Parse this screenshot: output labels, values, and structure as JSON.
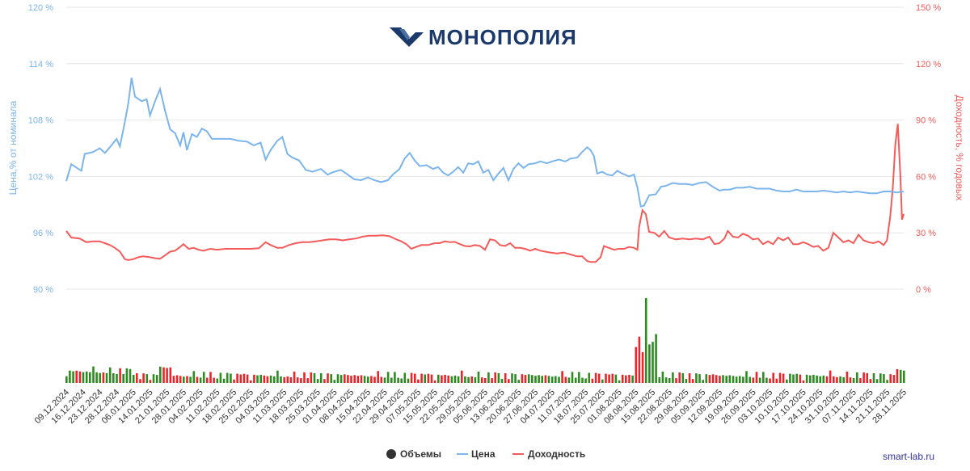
{
  "brand": {
    "logo_text": "МОНОПОЛИЯ"
  },
  "credits": "smart-lab.ru",
  "colors": {
    "price": "#7cb5ec",
    "yield": "#f45b5b",
    "vol_up": "#2e8b22",
    "vol_down": "#e8252a",
    "vol_marker": "#333333"
  },
  "chart_data": {
    "type": "line",
    "title": "",
    "axes": {
      "left": {
        "title": "Цена,% от номинала",
        "ticks": [
          "90 %",
          "96 %",
          "102 %",
          "108 %",
          "114 %",
          "120 %"
        ],
        "min": 90,
        "max": 120
      },
      "right": {
        "title": "Доходность, % годовых",
        "ticks": [
          "0 %",
          "30 %",
          "60 %",
          "90 %",
          "120 %",
          "150 %"
        ],
        "min": 0,
        "max": 150
      }
    },
    "x_tick_labels": [
      "09.12.2024",
      "16.12.2024",
      "23.12.2024",
      "28.12.2024",
      "06.01.2025",
      "14.01.2025",
      "21.01.2025",
      "28.01.2025",
      "04.02.2025",
      "11.02.2025",
      "18.02.2025",
      "25.02.2025",
      "04.03.2025",
      "11.03.2025",
      "18.03.2025",
      "25.03.2025",
      "01.04.2025",
      "08.04.2025",
      "15.04.2025",
      "22.04.2025",
      "29.04.2025",
      "07.05.2025",
      "15.05.2025",
      "22.05.2025",
      "29.05.2025",
      "05.06.2025",
      "13.06.2025",
      "20.06.2025",
      "27.06.2025",
      "04.07.2025",
      "11.07.2025",
      "18.07.2025",
      "25.07.2025",
      "01.08.2025",
      "08.08.2025",
      "15.08.2025",
      "22.08.2025",
      "29.08.2025",
      "05.09.2025",
      "12.09.2025",
      "19.09.2025",
      "26.09.2025",
      "03.10.2025",
      "10.10.2025",
      "17.10.2025",
      "24.10.2025",
      "31.10.2025",
      "07.11.2025",
      "14.11.2025",
      "21.11.2025",
      "28.11.2025"
    ],
    "legend": [
      "Объемы",
      "Цена",
      "Доходность"
    ],
    "price_anchors": [
      [
        0,
        101.5
      ],
      [
        0.3,
        103.3
      ],
      [
        0.9,
        102.6
      ],
      [
        1.1,
        104.4
      ],
      [
        1.6,
        104.6
      ],
      [
        2.0,
        105.0
      ],
      [
        2.3,
        104.5
      ],
      [
        2.6,
        105.1
      ],
      [
        3.0,
        106.0
      ],
      [
        3.2,
        105.2
      ],
      [
        3.5,
        107.8
      ],
      [
        3.7,
        109.8
      ],
      [
        3.9,
        112.5
      ],
      [
        4.1,
        110.5
      ],
      [
        4.5,
        110.0
      ],
      [
        4.8,
        110.2
      ],
      [
        5.0,
        108.5
      ],
      [
        5.3,
        110.0
      ],
      [
        5.6,
        111.3
      ],
      [
        5.9,
        109.0
      ],
      [
        6.2,
        107.0
      ],
      [
        6.5,
        106.6
      ],
      [
        6.8,
        105.3
      ],
      [
        7.0,
        106.7
      ],
      [
        7.2,
        104.8
      ],
      [
        7.5,
        106.5
      ],
      [
        7.8,
        106.2
      ],
      [
        8.1,
        107.1
      ],
      [
        8.4,
        106.8
      ],
      [
        8.7,
        106.0
      ],
      [
        9.2,
        106.0
      ],
      [
        9.8,
        106.0
      ],
      [
        10.3,
        105.8
      ],
      [
        10.8,
        105.7
      ],
      [
        11.2,
        105.3
      ],
      [
        11.6,
        105.6
      ],
      [
        11.9,
        103.8
      ],
      [
        12.2,
        104.8
      ],
      [
        12.6,
        105.8
      ],
      [
        12.9,
        106.2
      ],
      [
        13.2,
        104.4
      ],
      [
        13.5,
        104.0
      ],
      [
        13.9,
        103.7
      ],
      [
        14.3,
        102.7
      ],
      [
        14.7,
        102.5
      ],
      [
        15.2,
        102.8
      ],
      [
        15.6,
        102.2
      ],
      [
        16.0,
        102.5
      ],
      [
        16.4,
        102.7
      ],
      [
        16.8,
        102.2
      ],
      [
        17.2,
        101.7
      ],
      [
        17.6,
        101.6
      ],
      [
        18.0,
        101.9
      ],
      [
        18.4,
        101.6
      ],
      [
        18.8,
        101.4
      ],
      [
        19.2,
        101.6
      ],
      [
        19.5,
        102.2
      ],
      [
        19.9,
        102.8
      ],
      [
        20.2,
        103.9
      ],
      [
        20.5,
        104.5
      ],
      [
        20.8,
        103.7
      ],
      [
        21.1,
        103.1
      ],
      [
        21.5,
        103.2
      ],
      [
        21.9,
        102.8
      ],
      [
        22.2,
        103.0
      ],
      [
        22.5,
        102.4
      ],
      [
        22.8,
        102.1
      ],
      [
        23.1,
        102.5
      ],
      [
        23.4,
        103.0
      ],
      [
        23.7,
        102.4
      ],
      [
        24.0,
        103.4
      ],
      [
        24.3,
        103.3
      ],
      [
        24.6,
        103.6
      ],
      [
        24.9,
        102.4
      ],
      [
        25.2,
        102.7
      ],
      [
        25.5,
        101.6
      ],
      [
        25.8,
        102.3
      ],
      [
        26.1,
        102.9
      ],
      [
        26.4,
        101.6
      ],
      [
        26.7,
        102.8
      ],
      [
        27.0,
        103.4
      ],
      [
        27.3,
        102.9
      ],
      [
        27.6,
        103.3
      ],
      [
        28.0,
        103.4
      ],
      [
        28.3,
        103.6
      ],
      [
        28.7,
        103.4
      ],
      [
        29.0,
        103.6
      ],
      [
        29.4,
        103.8
      ],
      [
        29.8,
        103.6
      ],
      [
        30.1,
        103.9
      ],
      [
        30.5,
        104.0
      ],
      [
        30.8,
        104.6
      ],
      [
        31.1,
        105.1
      ],
      [
        31.3,
        104.8
      ],
      [
        31.5,
        104.2
      ],
      [
        31.7,
        102.3
      ],
      [
        32.0,
        102.5
      ],
      [
        32.3,
        102.2
      ],
      [
        32.6,
        102.1
      ],
      [
        32.9,
        102.6
      ],
      [
        33.2,
        102.3
      ],
      [
        33.6,
        102.0
      ],
      [
        33.9,
        102.2
      ],
      [
        34.1,
        100.8
      ],
      [
        34.3,
        98.8
      ],
      [
        34.5,
        98.9
      ],
      [
        34.8,
        100.0
      ],
      [
        35.2,
        100.1
      ],
      [
        35.5,
        100.9
      ],
      [
        35.8,
        101.0
      ],
      [
        36.2,
        101.3
      ],
      [
        36.6,
        101.2
      ],
      [
        37.0,
        101.2
      ],
      [
        37.4,
        101.1
      ],
      [
        37.8,
        101.3
      ],
      [
        38.2,
        101.4
      ],
      [
        38.6,
        100.9
      ],
      [
        39.0,
        100.5
      ],
      [
        39.3,
        100.6
      ],
      [
        39.6,
        100.6
      ],
      [
        40.0,
        100.8
      ],
      [
        40.4,
        100.8
      ],
      [
        40.8,
        100.9
      ],
      [
        41.2,
        100.7
      ],
      [
        41.6,
        100.7
      ],
      [
        42.0,
        100.7
      ],
      [
        42.4,
        100.5
      ],
      [
        42.8,
        100.4
      ],
      [
        43.2,
        100.4
      ],
      [
        43.6,
        100.6
      ],
      [
        44.0,
        100.4
      ],
      [
        44.4,
        100.4
      ],
      [
        44.8,
        100.4
      ],
      [
        45.2,
        100.5
      ],
      [
        45.6,
        100.4
      ],
      [
        46.0,
        100.3
      ],
      [
        46.4,
        100.4
      ],
      [
        46.8,
        100.3
      ],
      [
        47.2,
        100.4
      ],
      [
        47.6,
        100.3
      ],
      [
        48.0,
        100.2
      ],
      [
        48.4,
        100.2
      ],
      [
        48.8,
        100.4
      ],
      [
        49.2,
        100.4
      ],
      [
        49.6,
        100.3
      ],
      [
        50.0,
        100.4
      ]
    ],
    "yield_anchors": [
      [
        0,
        31.0
      ],
      [
        0.3,
        27.5
      ],
      [
        0.8,
        27.0
      ],
      [
        1.2,
        25.0
      ],
      [
        1.6,
        25.5
      ],
      [
        2.0,
        25.5
      ],
      [
        2.3,
        24.5
      ],
      [
        2.6,
        23.5
      ],
      [
        2.9,
        22.0
      ],
      [
        3.2,
        20.0
      ],
      [
        3.5,
        16.0
      ],
      [
        3.7,
        15.5
      ],
      [
        4.0,
        16.0
      ],
      [
        4.3,
        17.0
      ],
      [
        4.6,
        17.5
      ],
      [
        5.0,
        17.0
      ],
      [
        5.3,
        16.5
      ],
      [
        5.6,
        16.2
      ],
      [
        5.9,
        18.0
      ],
      [
        6.2,
        20.0
      ],
      [
        6.5,
        20.5
      ],
      [
        6.8,
        22.5
      ],
      [
        7.0,
        24.0
      ],
      [
        7.3,
        21.5
      ],
      [
        7.6,
        22.0
      ],
      [
        7.9,
        21.0
      ],
      [
        8.2,
        20.5
      ],
      [
        8.6,
        21.5
      ],
      [
        9.0,
        21.0
      ],
      [
        9.5,
        21.5
      ],
      [
        10.0,
        21.5
      ],
      [
        10.5,
        21.5
      ],
      [
        11.0,
        21.5
      ],
      [
        11.5,
        21.8
      ],
      [
        11.9,
        25.0
      ],
      [
        12.2,
        23.5
      ],
      [
        12.6,
        22.0
      ],
      [
        12.9,
        22.0
      ],
      [
        13.3,
        23.5
      ],
      [
        13.7,
        24.5
      ],
      [
        14.1,
        25.0
      ],
      [
        14.5,
        25.0
      ],
      [
        14.9,
        25.5
      ],
      [
        15.3,
        26.0
      ],
      [
        15.7,
        26.5
      ],
      [
        16.1,
        26.5
      ],
      [
        16.5,
        26.0
      ],
      [
        16.9,
        26.5
      ],
      [
        17.3,
        27.0
      ],
      [
        17.7,
        28.0
      ],
      [
        18.1,
        28.5
      ],
      [
        18.5,
        28.5
      ],
      [
        18.9,
        28.7
      ],
      [
        19.3,
        28.2
      ],
      [
        19.7,
        26.5
      ],
      [
        20.0,
        25.5
      ],
      [
        20.3,
        24.0
      ],
      [
        20.6,
        21.5
      ],
      [
        20.9,
        22.5
      ],
      [
        21.2,
        23.5
      ],
      [
        21.6,
        23.5
      ],
      [
        22.0,
        24.5
      ],
      [
        22.3,
        24.5
      ],
      [
        22.6,
        25.5
      ],
      [
        22.9,
        25.0
      ],
      [
        23.2,
        25.2
      ],
      [
        23.5,
        24.0
      ],
      [
        23.8,
        23.0
      ],
      [
        24.1,
        22.8
      ],
      [
        24.4,
        23.5
      ],
      [
        24.7,
        23.0
      ],
      [
        25.0,
        21.0
      ],
      [
        25.3,
        26.5
      ],
      [
        25.6,
        26.0
      ],
      [
        25.9,
        23.5
      ],
      [
        26.2,
        23.0
      ],
      [
        26.5,
        24.5
      ],
      [
        26.8,
        22.0
      ],
      [
        27.1,
        22.0
      ],
      [
        27.4,
        21.5
      ],
      [
        27.7,
        20.5
      ],
      [
        28.0,
        21.5
      ],
      [
        28.3,
        20.5
      ],
      [
        28.6,
        20.0
      ],
      [
        28.9,
        19.5
      ],
      [
        29.3,
        19.0
      ],
      [
        29.7,
        19.5
      ],
      [
        30.1,
        18.5
      ],
      [
        30.5,
        17.5
      ],
      [
        30.8,
        17.5
      ],
      [
        31.1,
        15.0
      ],
      [
        31.3,
        14.5
      ],
      [
        31.6,
        14.5
      ],
      [
        31.9,
        17.0
      ],
      [
        32.1,
        23.0
      ],
      [
        32.4,
        22.0
      ],
      [
        32.7,
        21.0
      ],
      [
        33.0,
        21.5
      ],
      [
        33.3,
        21.5
      ],
      [
        33.6,
        22.5
      ],
      [
        33.9,
        22.0
      ],
      [
        34.1,
        21.0
      ],
      [
        34.2,
        33.0
      ],
      [
        34.4,
        42.0
      ],
      [
        34.6,
        40.0
      ],
      [
        34.8,
        30.5
      ],
      [
        35.1,
        30.0
      ],
      [
        35.4,
        28.0
      ],
      [
        35.7,
        31.0
      ],
      [
        36.0,
        27.5
      ],
      [
        36.4,
        26.5
      ],
      [
        36.8,
        27.0
      ],
      [
        37.2,
        26.5
      ],
      [
        37.6,
        27.0
      ],
      [
        38.0,
        26.5
      ],
      [
        38.4,
        28.0
      ],
      [
        38.7,
        24.0
      ],
      [
        39.0,
        24.5
      ],
      [
        39.3,
        27.0
      ],
      [
        39.5,
        31.0
      ],
      [
        39.8,
        28.0
      ],
      [
        40.1,
        27.5
      ],
      [
        40.4,
        29.5
      ],
      [
        40.7,
        28.5
      ],
      [
        41.0,
        26.5
      ],
      [
        41.3,
        27.0
      ],
      [
        41.6,
        24.0
      ],
      [
        41.9,
        25.5
      ],
      [
        42.2,
        24.0
      ],
      [
        42.5,
        27.5
      ],
      [
        42.8,
        26.0
      ],
      [
        43.1,
        27.5
      ],
      [
        43.4,
        24.0
      ],
      [
        43.7,
        24.0
      ],
      [
        44.0,
        25.0
      ],
      [
        44.3,
        24.0
      ],
      [
        44.6,
        22.5
      ],
      [
        44.9,
        23.0
      ],
      [
        45.2,
        20.5
      ],
      [
        45.5,
        22.0
      ],
      [
        45.8,
        30.0
      ],
      [
        46.1,
        27.5
      ],
      [
        46.4,
        25.0
      ],
      [
        46.7,
        26.0
      ],
      [
        47.0,
        24.5
      ],
      [
        47.3,
        29.0
      ],
      [
        47.6,
        26.0
      ],
      [
        47.9,
        25.0
      ],
      [
        48.2,
        24.5
      ],
      [
        48.5,
        25.5
      ],
      [
        48.8,
        23.5
      ],
      [
        49.0,
        26.0
      ],
      [
        49.2,
        39.0
      ],
      [
        49.35,
        54.0
      ],
      [
        49.5,
        77.0
      ],
      [
        49.65,
        88.0
      ],
      [
        49.8,
        60.0
      ],
      [
        49.9,
        37.0
      ],
      [
        50.0,
        40.0
      ]
    ],
    "volume_max": 165
  }
}
